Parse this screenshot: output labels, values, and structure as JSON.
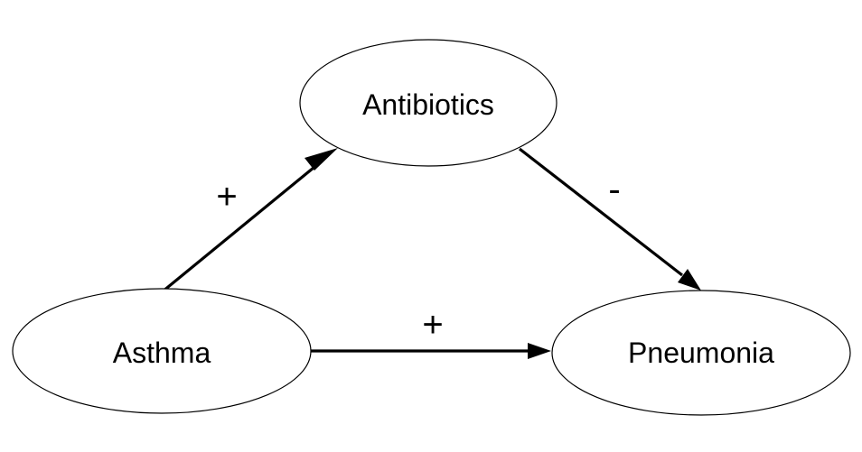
{
  "nodes": {
    "antibiotics": {
      "label": "Antibiotics"
    },
    "asthma": {
      "label": "Asthma"
    },
    "pneumonia": {
      "label": "Pneumonia"
    }
  },
  "edges": [
    {
      "from": "asthma",
      "to": "antibiotics",
      "sign": "+"
    },
    {
      "from": "antibiotics",
      "to": "pneumonia",
      "sign": "-"
    },
    {
      "from": "asthma",
      "to": "pneumonia",
      "sign": "+"
    }
  ],
  "colors": {
    "stroke": "#000000",
    "background": "#ffffff"
  }
}
